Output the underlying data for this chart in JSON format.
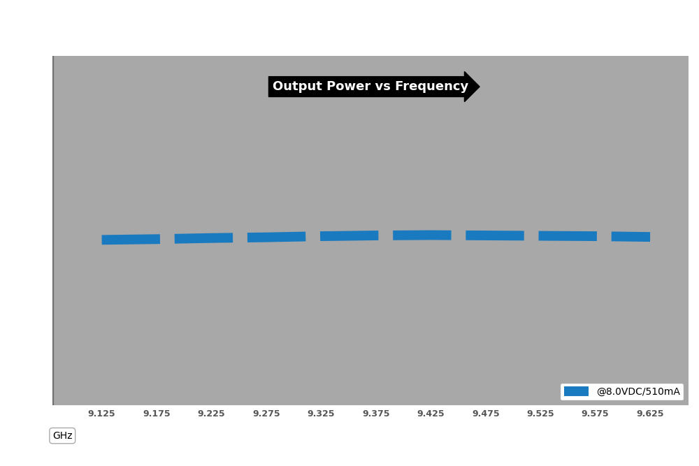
{
  "title": "Output Power vs Frequency",
  "xlabel": "GHz",
  "background_color": "#a8a8a8",
  "outer_background": "#ffffff",
  "line_color": "#1a7abf",
  "line_label": "@8.0VDC/510mA",
  "x_values": [
    9.125,
    9.175,
    9.225,
    9.275,
    9.325,
    9.375,
    9.425,
    9.475,
    9.525,
    9.575,
    9.625
  ],
  "y_values": [
    18.5,
    18.52,
    18.55,
    18.57,
    18.6,
    18.62,
    18.63,
    18.62,
    18.61,
    18.6,
    18.58
  ],
  "xlim": [
    9.08,
    9.66
  ],
  "ylim": [
    14.0,
    23.5
  ],
  "xticks": [
    9.125,
    9.175,
    9.225,
    9.275,
    9.325,
    9.375,
    9.425,
    9.475,
    9.525,
    9.575,
    9.625
  ],
  "title_fontsize": 13,
  "tick_fontsize": 9,
  "line_width": 10,
  "legend_loc": "lower right",
  "left_border_color": "#707070"
}
